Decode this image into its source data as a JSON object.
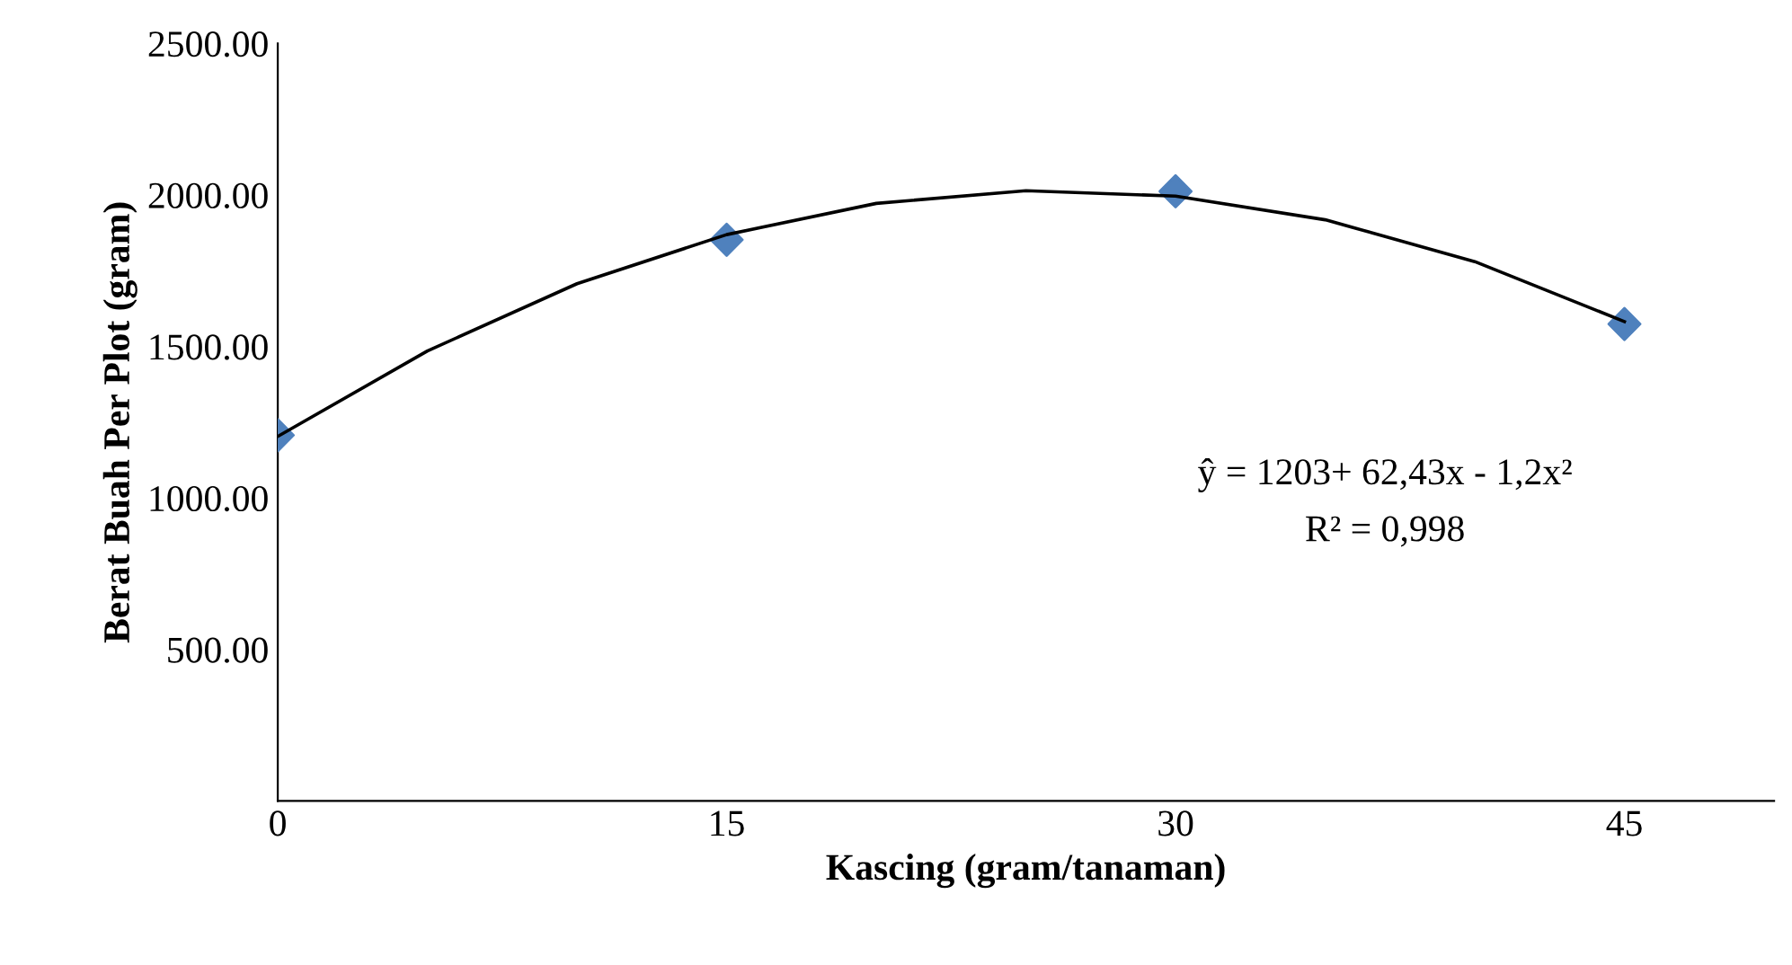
{
  "chart_data": {
    "type": "scatter",
    "xlabel": "Kascing (gram/tanaman)",
    "ylabel": "Berat Buah Per Plot (gram)",
    "xlim": [
      0,
      50
    ],
    "xticks": [
      0,
      15,
      30,
      45
    ],
    "ylim": [
      0,
      2500
    ],
    "yticks": [
      {
        "value": 500,
        "label": "500.00"
      },
      {
        "value": 1000,
        "label": "1000.00"
      },
      {
        "value": 1500,
        "label": "1500.00"
      },
      {
        "value": 2000,
        "label": "2000.00"
      },
      {
        "value": 2500,
        "label": "2500.00"
      }
    ],
    "grid": false,
    "legend": false,
    "marker": "diamond",
    "series": [
      {
        "color": "#4f81bd",
        "x": [
          0,
          15,
          30,
          45
        ],
        "values": [
          1207,
          1852,
          2012,
          1574
        ]
      },
      {
        "type": "line",
        "color": "#000000",
        "marker": "none",
        "x": [
          0,
          5,
          10,
          15,
          20,
          25,
          30,
          35,
          40,
          45
        ],
        "values": [
          1203,
          1485,
          1707,
          1869,
          1972,
          2014,
          1996,
          1918,
          1780,
          1582
        ]
      }
    ],
    "annotations": [
      "ŷ = 1203+ 62,43x - 1,2x²",
      "R² = 0,998"
    ]
  }
}
